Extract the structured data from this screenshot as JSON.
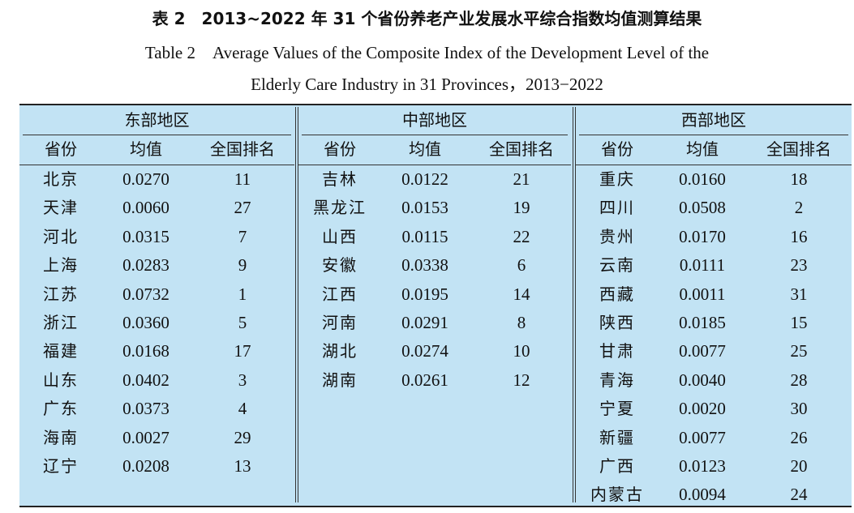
{
  "title_cn": "表 2　2013~2022 年 31 个省份养老产业发展水平综合指数均值测算结果",
  "title_en_line1": "Table 2　Average Values of the Composite Index of the Development Level of the",
  "title_en_line2": "Elderly Care Industry in 31 Provinces，2013−2022",
  "regions": [
    {
      "name": "东部地区",
      "headers": {
        "province": "省份",
        "mean": "均值",
        "rank": "全国排名"
      },
      "rows": [
        {
          "province": "北京",
          "mean": "0.0270",
          "rank": "11"
        },
        {
          "province": "天津",
          "mean": "0.0060",
          "rank": "27"
        },
        {
          "province": "河北",
          "mean": "0.0315",
          "rank": "7"
        },
        {
          "province": "上海",
          "mean": "0.0283",
          "rank": "9"
        },
        {
          "province": "江苏",
          "mean": "0.0732",
          "rank": "1"
        },
        {
          "province": "浙江",
          "mean": "0.0360",
          "rank": "5"
        },
        {
          "province": "福建",
          "mean": "0.0168",
          "rank": "17"
        },
        {
          "province": "山东",
          "mean": "0.0402",
          "rank": "3"
        },
        {
          "province": "广东",
          "mean": "0.0373",
          "rank": "4"
        },
        {
          "province": "海南",
          "mean": "0.0027",
          "rank": "29"
        },
        {
          "province": "辽宁",
          "mean": "0.0208",
          "rank": "13"
        }
      ]
    },
    {
      "name": "中部地区",
      "headers": {
        "province": "省份",
        "mean": "均值",
        "rank": "全国排名"
      },
      "rows": [
        {
          "province": "吉林",
          "mean": "0.0122",
          "rank": "21"
        },
        {
          "province": "黑龙江",
          "mean": "0.0153",
          "rank": "19"
        },
        {
          "province": "山西",
          "mean": "0.0115",
          "rank": "22"
        },
        {
          "province": "安徽",
          "mean": "0.0338",
          "rank": "6"
        },
        {
          "province": "江西",
          "mean": "0.0195",
          "rank": "14"
        },
        {
          "province": "河南",
          "mean": "0.0291",
          "rank": "8"
        },
        {
          "province": "湖北",
          "mean": "0.0274",
          "rank": "10"
        },
        {
          "province": "湖南",
          "mean": "0.0261",
          "rank": "12"
        }
      ]
    },
    {
      "name": "西部地区",
      "headers": {
        "province": "省份",
        "mean": "均值",
        "rank": "全国排名"
      },
      "rows": [
        {
          "province": "重庆",
          "mean": "0.0160",
          "rank": "18"
        },
        {
          "province": "四川",
          "mean": "0.0508",
          "rank": "2"
        },
        {
          "province": "贵州",
          "mean": "0.0170",
          "rank": "16"
        },
        {
          "province": "云南",
          "mean": "0.0111",
          "rank": "23"
        },
        {
          "province": "西藏",
          "mean": "0.0011",
          "rank": "31"
        },
        {
          "province": "陕西",
          "mean": "0.0185",
          "rank": "15"
        },
        {
          "province": "甘肃",
          "mean": "0.0077",
          "rank": "25"
        },
        {
          "province": "青海",
          "mean": "0.0040",
          "rank": "28"
        },
        {
          "province": "宁夏",
          "mean": "0.0020",
          "rank": "30"
        },
        {
          "province": "新疆",
          "mean": "0.0077",
          "rank": "26"
        },
        {
          "province": "广西",
          "mean": "0.0123",
          "rank": "20"
        },
        {
          "province": "内蒙古",
          "mean": "0.0094",
          "rank": "24"
        }
      ]
    }
  ],
  "colors": {
    "table_background": "#c2e3f4",
    "rule": "#222222"
  }
}
